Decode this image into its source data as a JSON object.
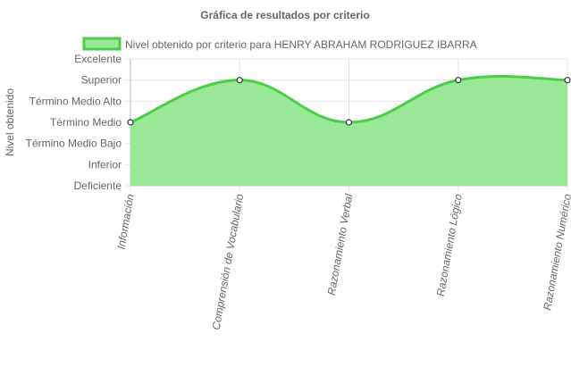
{
  "chart_data": {
    "type": "area",
    "title": "Gráfica de resultados por criterio",
    "ylabel": "Nivel obtenido",
    "xlabel": "",
    "y_categories": [
      "Deficiente",
      "Inferior",
      "Término Medio Bajo",
      "Término Medio",
      "Término Medio Alto",
      "Superior",
      "Excelente"
    ],
    "categories": [
      "Información",
      "Comprensión de Vocabulario",
      "Razonamiento Verbal",
      "Razonamiento Lógico",
      "Razonamiento Numérico"
    ],
    "series": [
      {
        "name": "Nivel obtenido por criterio para HENRY ABRAHAM RODRIGUEZ IBARRA",
        "values": [
          "Término Medio",
          "Superior",
          "Término Medio",
          "Superior",
          "Superior"
        ]
      }
    ],
    "grid": true,
    "legend_position": "top",
    "colors": {
      "fill": "#98e895",
      "line": "#4ccc48",
      "point_fill": "#ffffff",
      "point_stroke": "#333333"
    }
  }
}
